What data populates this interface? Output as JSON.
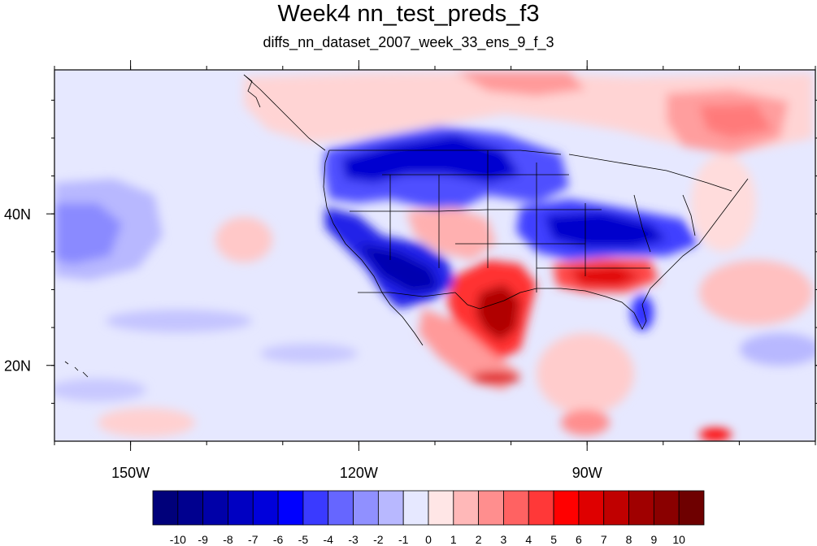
{
  "title": "Week4 nn_test_preds_f3",
  "subtitle": "diffs_nn_dataset_2007_week_33_ens_9_f_3",
  "map": {
    "projection": "cylindrical equidistant",
    "lon_range": [
      -160,
      -60
    ],
    "lat_range": [
      10,
      59
    ],
    "lon_ticks": [
      {
        "value": -150,
        "label": "150W"
      },
      {
        "value": -120,
        "label": "120W"
      },
      {
        "value": -90,
        "label": "90W"
      }
    ],
    "lat_ticks": [
      {
        "value": 40,
        "label": "40N"
      },
      {
        "value": 20,
        "label": "20N"
      }
    ],
    "field": "temperature difference (contour fill)",
    "features": [
      "coastlines",
      "US state boundaries",
      "country borders"
    ]
  },
  "colorbar": {
    "labels": [
      "-10",
      "-9",
      "-8",
      "-7",
      "-6",
      "-5",
      "-4",
      "-3",
      "-2",
      "-1",
      "0",
      "1",
      "2",
      "3",
      "4",
      "5",
      "6",
      "7",
      "8",
      "9",
      "10"
    ],
    "colors": [
      "#00007a",
      "#00008f",
      "#0000a8",
      "#0000c2",
      "#0000db",
      "#0000ff",
      "#3a3aff",
      "#6666ff",
      "#9090ff",
      "#b8b8ff",
      "#e6e8ff",
      "#ffe6e6",
      "#ffb8b8",
      "#ff8e8e",
      "#ff6262",
      "#ff3838",
      "#ff0000",
      "#df0000",
      "#c00000",
      "#a00000",
      "#8a0000",
      "#6e0000"
    ]
  }
}
